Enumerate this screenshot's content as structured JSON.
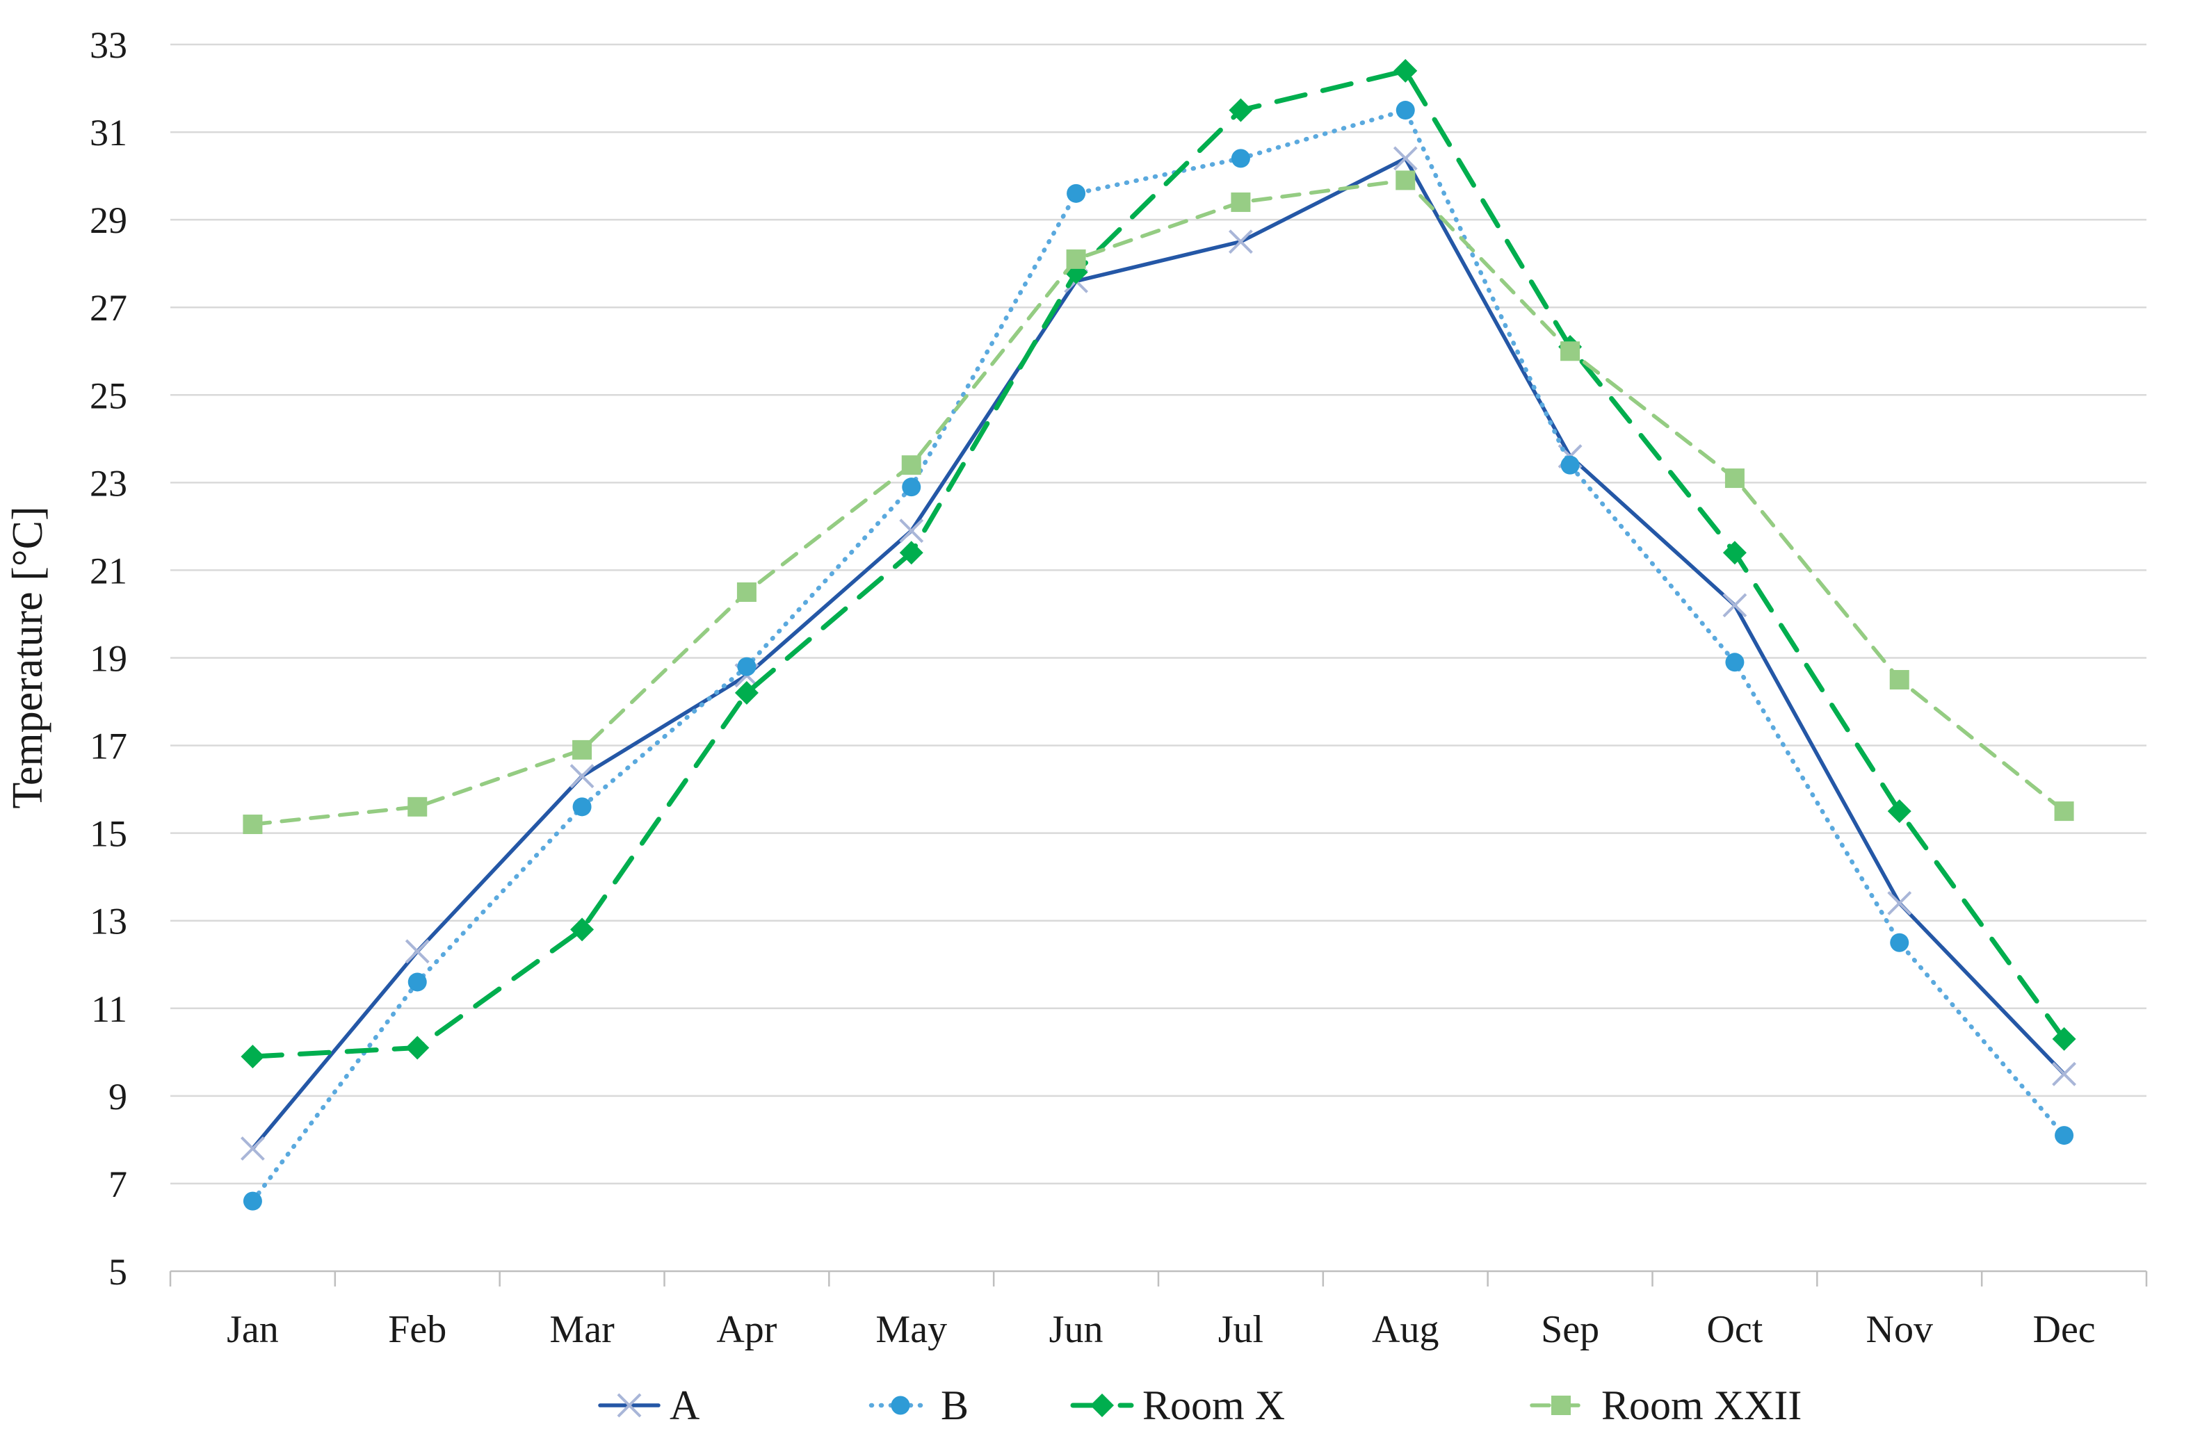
{
  "figure": {
    "kind": "scientific line chart",
    "background": "#ffffff"
  },
  "chart_data": {
    "type": "line",
    "title": "",
    "xlabel": "",
    "ylabel": "Temperature [°C]",
    "categories": [
      "Jan",
      "Feb",
      "Mar",
      "Apr",
      "May",
      "Jun",
      "Jul",
      "Aug",
      "Sep",
      "Oct",
      "Nov",
      "Dec"
    ],
    "ylim": [
      5,
      33
    ],
    "ytick_step": 2,
    "grid": "horizontal",
    "gridline_color": "#d9d9d9",
    "axis_line_color": "#bfbfbf",
    "legend_position": "bottom",
    "series": [
      {
        "name": "A",
        "values": [
          7.8,
          12.3,
          16.3,
          18.6,
          21.9,
          27.6,
          28.5,
          30.4,
          23.6,
          20.2,
          13.4,
          9.5
        ],
        "line_color": "#2457a6",
        "line_style": "solid",
        "marker": "x",
        "marker_color": "#a9b6d8"
      },
      {
        "name": "B",
        "values": [
          6.6,
          11.6,
          15.6,
          18.8,
          22.9,
          29.6,
          30.4,
          31.5,
          23.4,
          18.9,
          12.5,
          8.1
        ],
        "line_color": "#5aa9de",
        "line_style": "dotted",
        "marker": "circle",
        "marker_color": "#2e9bd6"
      },
      {
        "name": "Room X",
        "values": [
          9.9,
          10.1,
          12.8,
          18.2,
          21.4,
          27.8,
          31.5,
          32.4,
          26.1,
          21.4,
          15.5,
          10.3
        ],
        "line_color": "#00ae4e",
        "line_style": "dashed",
        "marker": "diamond",
        "marker_color": "#00ae4e"
      },
      {
        "name": "Room XXII",
        "values": [
          15.2,
          15.6,
          16.9,
          20.5,
          23.4,
          28.1,
          29.4,
          29.9,
          26.0,
          23.1,
          18.5,
          15.5
        ],
        "line_color": "#94cc82",
        "line_style": "dashed-short",
        "marker": "square",
        "marker_color": "#97cd85"
      }
    ]
  }
}
